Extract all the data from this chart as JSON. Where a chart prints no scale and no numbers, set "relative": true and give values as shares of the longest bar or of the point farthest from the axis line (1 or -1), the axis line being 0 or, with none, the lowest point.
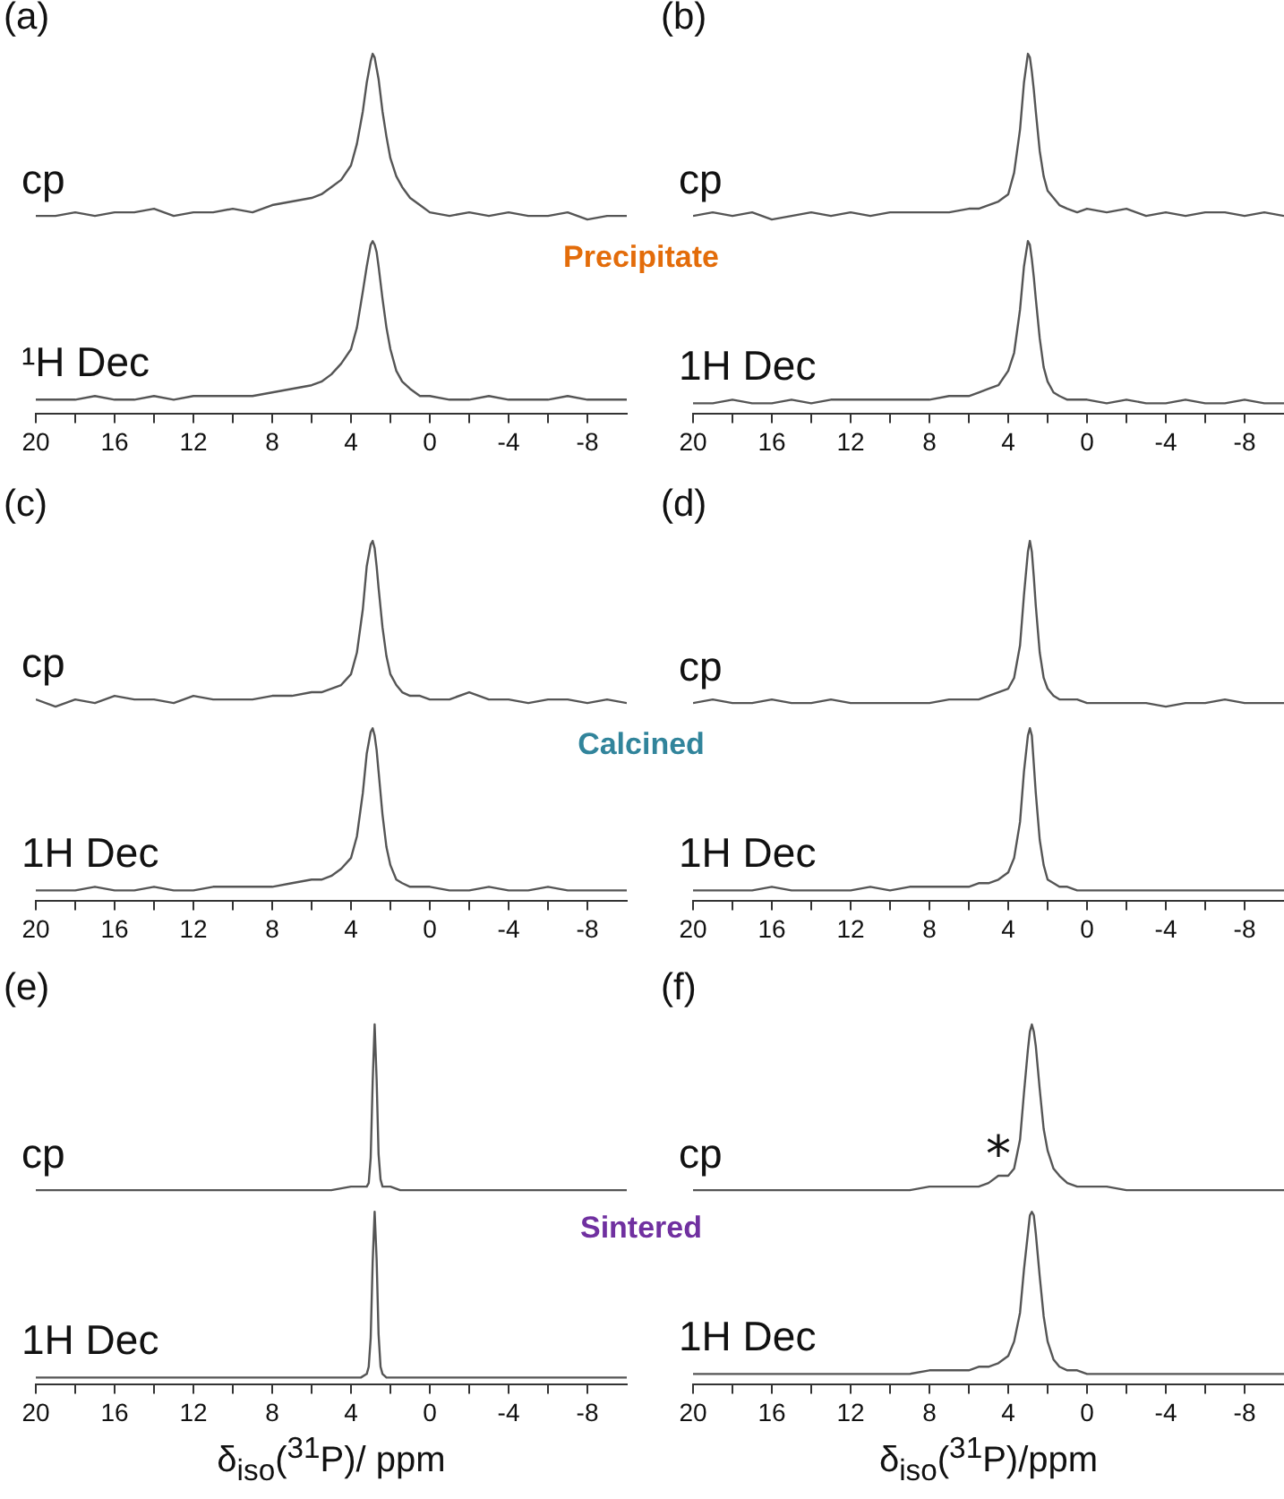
{
  "chart_data": [
    {
      "type": "line",
      "title": "(a)",
      "relative": true,
      "marker": "none",
      "line_style": "solid",
      "xlim": [
        20,
        -10
      ],
      "xticks": [
        20,
        {
          "value": 18,
          "label": null
        },
        16,
        {
          "value": 14,
          "label": null
        },
        12,
        {
          "value": 10,
          "label": null
        },
        8,
        {
          "value": 6,
          "label": null
        },
        4,
        {
          "value": 2,
          "label": null
        },
        0,
        {
          "value": -2,
          "label": null
        },
        -4,
        {
          "value": -6,
          "label": null
        },
        -8
      ],
      "annotations": [
        "Precipitate"
      ],
      "x": [
        20,
        19,
        18,
        17,
        16,
        15,
        14,
        13,
        12,
        11,
        10,
        9,
        8,
        7,
        6,
        5.5,
        5,
        4.5,
        4,
        3.7,
        3.4,
        3.2,
        3.0,
        2.9,
        2.8,
        2.7,
        2.6,
        2.4,
        2.2,
        2.0,
        1.7,
        1.4,
        1,
        0.5,
        0,
        -1,
        -2,
        -3,
        -4,
        -5,
        -6,
        -7,
        -8,
        -9,
        -10
      ],
      "series": [
        {
          "name": "cp",
          "color": "#555555",
          "values": [
            0.55,
            0.55,
            0.56,
            0.55,
            0.56,
            0.56,
            0.57,
            0.55,
            0.56,
            0.56,
            0.57,
            0.56,
            0.58,
            0.59,
            0.6,
            0.61,
            0.63,
            0.65,
            0.69,
            0.75,
            0.84,
            0.92,
            0.98,
            1,
            0.99,
            0.96,
            0.93,
            0.84,
            0.77,
            0.71,
            0.66,
            0.63,
            0.6,
            0.58,
            0.56,
            0.55,
            0.56,
            0.55,
            0.56,
            0.55,
            0.55,
            0.56,
            0.54,
            0.55,
            0.55
          ]
        },
        {
          "name": "¹H Dec",
          "color": "#555555",
          "values": [
            0.04,
            0.04,
            0.04,
            0.05,
            0.04,
            0.04,
            0.05,
            0.04,
            0.05,
            0.05,
            0.05,
            0.05,
            0.06,
            0.07,
            0.08,
            0.09,
            0.11,
            0.14,
            0.18,
            0.24,
            0.34,
            0.41,
            0.47,
            0.48,
            0.47,
            0.45,
            0.41,
            0.32,
            0.24,
            0.18,
            0.12,
            0.09,
            0.07,
            0.05,
            0.05,
            0.04,
            0.04,
            0.05,
            0.04,
            0.04,
            0.04,
            0.05,
            0.04,
            0.04,
            0.04
          ]
        }
      ]
    },
    {
      "type": "line",
      "title": "(b)",
      "relative": true,
      "marker": "none",
      "line_style": "solid",
      "xlim": [
        20,
        -10
      ],
      "xticks": [
        20,
        {
          "value": 18,
          "label": null
        },
        16,
        {
          "value": 14,
          "label": null
        },
        12,
        {
          "value": 10,
          "label": null
        },
        8,
        {
          "value": 6,
          "label": null
        },
        4,
        {
          "value": 2,
          "label": null
        },
        0,
        {
          "value": -2,
          "label": null
        },
        -4,
        {
          "value": -6,
          "label": null
        },
        -8
      ],
      "x": [
        20,
        19,
        18,
        17,
        16,
        15,
        14,
        13,
        12,
        11,
        10,
        9,
        8,
        7,
        6,
        5.5,
        5,
        4.5,
        4,
        3.7,
        3.4,
        3.2,
        3.0,
        2.9,
        2.8,
        2.7,
        2.6,
        2.4,
        2.2,
        2.0,
        1.7,
        1.4,
        1,
        0.5,
        0,
        -1,
        -2,
        -3,
        -4,
        -5,
        -6,
        -7,
        -8,
        -9,
        -10
      ],
      "series": [
        {
          "name": "cp",
          "color": "#555555",
          "values": [
            0.55,
            0.56,
            0.55,
            0.56,
            0.54,
            0.55,
            0.56,
            0.55,
            0.56,
            0.55,
            0.56,
            0.56,
            0.56,
            0.56,
            0.57,
            0.57,
            0.58,
            0.59,
            0.61,
            0.67,
            0.79,
            0.92,
            1,
            0.99,
            0.95,
            0.9,
            0.84,
            0.73,
            0.66,
            0.62,
            0.6,
            0.58,
            0.57,
            0.56,
            0.57,
            0.56,
            0.57,
            0.55,
            0.56,
            0.55,
            0.56,
            0.56,
            0.55,
            0.56,
            0.55
          ]
        },
        {
          "name": "1H Dec",
          "color": "#555555",
          "values": [
            0.03,
            0.03,
            0.04,
            0.03,
            0.03,
            0.04,
            0.03,
            0.04,
            0.04,
            0.04,
            0.04,
            0.04,
            0.04,
            0.05,
            0.05,
            0.06,
            0.07,
            0.08,
            0.12,
            0.17,
            0.29,
            0.41,
            0.48,
            0.47,
            0.43,
            0.38,
            0.32,
            0.21,
            0.13,
            0.09,
            0.06,
            0.05,
            0.04,
            0.04,
            0.04,
            0.03,
            0.04,
            0.03,
            0.03,
            0.04,
            0.03,
            0.03,
            0.04,
            0.03,
            0.03
          ]
        }
      ]
    },
    {
      "type": "line",
      "title": "(c)",
      "relative": true,
      "marker": "none",
      "line_style": "solid",
      "xlim": [
        20,
        -10
      ],
      "xticks": [
        20,
        {
          "value": 18,
          "label": null
        },
        16,
        {
          "value": 14,
          "label": null
        },
        12,
        {
          "value": 10,
          "label": null
        },
        8,
        {
          "value": 6,
          "label": null
        },
        4,
        {
          "value": 2,
          "label": null
        },
        0,
        {
          "value": -2,
          "label": null
        },
        -4,
        {
          "value": -6,
          "label": null
        },
        -8
      ],
      "annotations": [
        "Calcined"
      ],
      "x": [
        20,
        19,
        18,
        17,
        16,
        15,
        14,
        13,
        12,
        11,
        10,
        9,
        8,
        7,
        6,
        5.5,
        5,
        4.5,
        4,
        3.7,
        3.4,
        3.2,
        3.0,
        2.9,
        2.8,
        2.7,
        2.6,
        2.4,
        2.2,
        2.0,
        1.7,
        1.4,
        1,
        0.5,
        0,
        -1,
        -2,
        -3,
        -4,
        -5,
        -6,
        -7,
        -8,
        -9,
        -10
      ],
      "series": [
        {
          "name": "cp",
          "color": "#555555",
          "values": [
            0.56,
            0.54,
            0.56,
            0.55,
            0.57,
            0.56,
            0.56,
            0.55,
            0.57,
            0.56,
            0.56,
            0.56,
            0.57,
            0.57,
            0.58,
            0.58,
            0.59,
            0.6,
            0.63,
            0.69,
            0.81,
            0.93,
            0.99,
            1,
            0.98,
            0.93,
            0.87,
            0.76,
            0.68,
            0.63,
            0.6,
            0.58,
            0.57,
            0.57,
            0.56,
            0.56,
            0.58,
            0.56,
            0.56,
            0.55,
            0.56,
            0.56,
            0.55,
            0.56,
            0.55
          ]
        },
        {
          "name": "1H Dec",
          "color": "#555555",
          "values": [
            0.03,
            0.03,
            0.03,
            0.04,
            0.03,
            0.03,
            0.04,
            0.03,
            0.03,
            0.04,
            0.04,
            0.04,
            0.04,
            0.05,
            0.06,
            0.06,
            0.07,
            0.09,
            0.12,
            0.18,
            0.3,
            0.41,
            0.47,
            0.48,
            0.46,
            0.42,
            0.36,
            0.24,
            0.15,
            0.1,
            0.06,
            0.05,
            0.04,
            0.04,
            0.04,
            0.03,
            0.03,
            0.04,
            0.03,
            0.03,
            0.04,
            0.03,
            0.03,
            0.03,
            0.03
          ]
        }
      ]
    },
    {
      "type": "line",
      "title": "(d)",
      "relative": true,
      "marker": "none",
      "line_style": "solid",
      "xlim": [
        20,
        -10
      ],
      "xticks": [
        20,
        {
          "value": 18,
          "label": null
        },
        16,
        {
          "value": 14,
          "label": null
        },
        12,
        {
          "value": 10,
          "label": null
        },
        8,
        {
          "value": 6,
          "label": null
        },
        4,
        {
          "value": 2,
          "label": null
        },
        0,
        {
          "value": -2,
          "label": null
        },
        -4,
        {
          "value": -6,
          "label": null
        },
        -8
      ],
      "x": [
        20,
        19,
        18,
        17,
        16,
        15,
        14,
        13,
        12,
        11,
        10,
        9,
        8,
        7,
        6,
        5.5,
        5,
        4.5,
        4,
        3.7,
        3.4,
        3.2,
        3.0,
        2.9,
        2.8,
        2.7,
        2.6,
        2.4,
        2.2,
        2.0,
        1.7,
        1.4,
        1,
        0.5,
        0,
        -1,
        -2,
        -3,
        -4,
        -5,
        -6,
        -7,
        -8,
        -9,
        -10
      ],
      "series": [
        {
          "name": "cp",
          "color": "#555555",
          "values": [
            0.55,
            0.56,
            0.55,
            0.55,
            0.56,
            0.55,
            0.55,
            0.56,
            0.55,
            0.55,
            0.55,
            0.55,
            0.55,
            0.56,
            0.56,
            0.56,
            0.57,
            0.58,
            0.59,
            0.62,
            0.71,
            0.85,
            0.97,
            1,
            0.97,
            0.9,
            0.82,
            0.69,
            0.62,
            0.59,
            0.57,
            0.56,
            0.56,
            0.56,
            0.55,
            0.55,
            0.55,
            0.55,
            0.54,
            0.55,
            0.55,
            0.56,
            0.55,
            0.55,
            0.55
          ]
        },
        {
          "name": "1H Dec",
          "color": "#555555",
          "values": [
            0.03,
            0.03,
            0.03,
            0.03,
            0.04,
            0.03,
            0.03,
            0.03,
            0.03,
            0.04,
            0.03,
            0.04,
            0.04,
            0.04,
            0.04,
            0.05,
            0.05,
            0.06,
            0.08,
            0.12,
            0.22,
            0.36,
            0.46,
            0.48,
            0.46,
            0.38,
            0.3,
            0.17,
            0.1,
            0.06,
            0.05,
            0.04,
            0.04,
            0.03,
            0.03,
            0.03,
            0.03,
            0.03,
            0.03,
            0.03,
            0.03,
            0.03,
            0.03,
            0.03,
            0.03
          ]
        }
      ]
    },
    {
      "type": "line",
      "title": "(e)",
      "relative": true,
      "marker": "none",
      "line_style": "solid",
      "xlim": [
        20,
        -10
      ],
      "xticks": [
        20,
        {
          "value": 18,
          "label": null
        },
        16,
        {
          "value": 14,
          "label": null
        },
        12,
        {
          "value": 10,
          "label": null
        },
        8,
        {
          "value": 6,
          "label": null
        },
        4,
        {
          "value": 2,
          "label": null
        },
        0,
        {
          "value": -2,
          "label": null
        },
        -4,
        {
          "value": -6,
          "label": null
        },
        -8
      ],
      "annotations": [
        "Sintered"
      ],
      "xlabel": "δ$_{iso}$($^{31}$P)/ ppm",
      "x": [
        20,
        18,
        16,
        14,
        12,
        10,
        8,
        6,
        5,
        4,
        3.5,
        3.2,
        3.1,
        3.0,
        2.9,
        2.8,
        2.7,
        2.6,
        2.5,
        2.4,
        2.2,
        2.0,
        1.5,
        1,
        0,
        -2,
        -4,
        -6,
        -8,
        -10
      ],
      "series": [
        {
          "name": "cp",
          "color": "#555555",
          "values": [
            0.54,
            0.54,
            0.54,
            0.54,
            0.54,
            0.54,
            0.54,
            0.54,
            0.54,
            0.55,
            0.55,
            0.55,
            0.56,
            0.63,
            0.84,
            1,
            0.85,
            0.64,
            0.57,
            0.55,
            0.55,
            0.55,
            0.54,
            0.54,
            0.54,
            0.54,
            0.54,
            0.54,
            0.54,
            0.54
          ]
        },
        {
          "name": "1H Dec",
          "color": "#555555",
          "values": [
            0.02,
            0.02,
            0.02,
            0.02,
            0.02,
            0.02,
            0.02,
            0.02,
            0.02,
            0.02,
            0.02,
            0.03,
            0.05,
            0.13,
            0.34,
            0.48,
            0.35,
            0.14,
            0.05,
            0.03,
            0.02,
            0.02,
            0.02,
            0.02,
            0.02,
            0.02,
            0.02,
            0.02,
            0.02,
            0.02
          ]
        }
      ]
    },
    {
      "type": "line",
      "title": "(f)",
      "relative": true,
      "marker": "none",
      "line_style": "solid",
      "xlim": [
        20,
        -10
      ],
      "xticks": [
        20,
        {
          "value": 18,
          "label": null
        },
        16,
        {
          "value": 14,
          "label": null
        },
        12,
        {
          "value": 10,
          "label": null
        },
        8,
        {
          "value": 6,
          "label": null
        },
        4,
        {
          "value": 2,
          "label": null
        },
        0,
        {
          "value": -2,
          "label": null
        },
        -4,
        {
          "value": -6,
          "label": null
        },
        -8
      ],
      "annotations": [
        {
          "text": "*",
          "x": 4.5,
          "y": 0.58
        }
      ],
      "xlabel": "δ$_{iso}$($^{31}$P)/ppm",
      "x": [
        20,
        19,
        18,
        17,
        16,
        15,
        14,
        13,
        12,
        11,
        10,
        9,
        8,
        7,
        6,
        5.5,
        5,
        4.5,
        4,
        3.7,
        3.4,
        3.2,
        3.0,
        2.9,
        2.8,
        2.7,
        2.6,
        2.4,
        2.2,
        2.0,
        1.7,
        1.4,
        1,
        0.5,
        0,
        -1,
        -2,
        -3,
        -4,
        -5,
        -6,
        -7,
        -8,
        -9,
        -10
      ],
      "series": [
        {
          "name": "cp",
          "color": "#555555",
          "values": [
            0.54,
            0.54,
            0.54,
            0.54,
            0.54,
            0.54,
            0.54,
            0.54,
            0.54,
            0.54,
            0.54,
            0.54,
            0.55,
            0.55,
            0.55,
            0.55,
            0.56,
            0.58,
            0.58,
            0.6,
            0.68,
            0.81,
            0.93,
            0.98,
            1,
            0.98,
            0.94,
            0.82,
            0.71,
            0.65,
            0.6,
            0.58,
            0.56,
            0.55,
            0.55,
            0.55,
            0.54,
            0.54,
            0.54,
            0.54,
            0.54,
            0.54,
            0.54,
            0.54,
            0.54
          ]
        },
        {
          "name": "1H Dec",
          "color": "#555555",
          "values": [
            0.03,
            0.03,
            0.03,
            0.03,
            0.03,
            0.03,
            0.03,
            0.03,
            0.03,
            0.03,
            0.03,
            0.03,
            0.04,
            0.04,
            0.04,
            0.05,
            0.05,
            0.06,
            0.08,
            0.12,
            0.2,
            0.32,
            0.42,
            0.47,
            0.48,
            0.47,
            0.42,
            0.3,
            0.19,
            0.12,
            0.07,
            0.05,
            0.04,
            0.04,
            0.03,
            0.03,
            0.03,
            0.03,
            0.03,
            0.03,
            0.03,
            0.03,
            0.03,
            0.03,
            0.03
          ]
        }
      ]
    }
  ]
}
